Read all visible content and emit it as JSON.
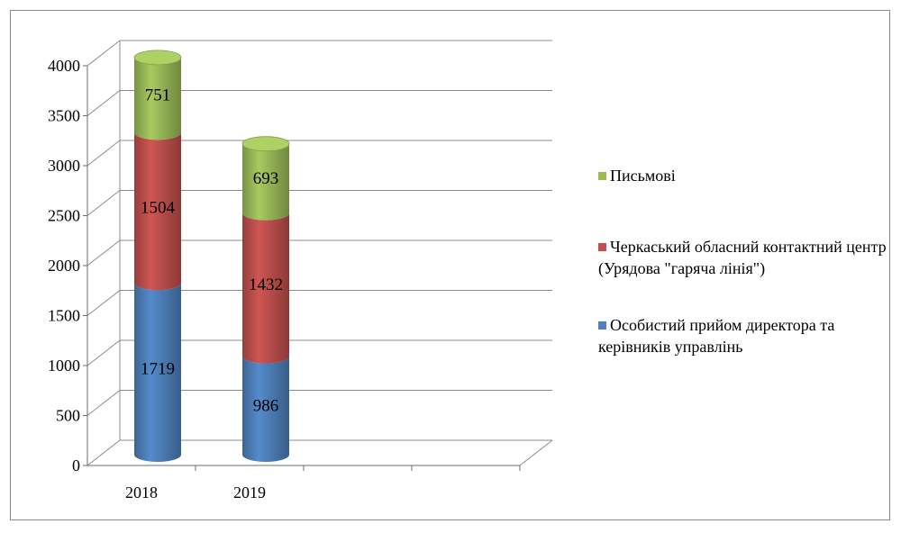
{
  "chart_data": {
    "type": "bar",
    "stacked": true,
    "style": "3d-cylinder",
    "categories": [
      "2018",
      "2019"
    ],
    "series": [
      {
        "name": "Особистий прийом директора та керівників  управлінь",
        "values": [
          1719,
          986
        ],
        "color": "#4f81bd"
      },
      {
        "name": "Черкаський обласний контактний центр (Урядова \"гаряча лінія\")",
        "values": [
          1504,
          1432
        ],
        "color": "#c0504d"
      },
      {
        "name": "Письмові",
        "values": [
          751,
          693
        ],
        "color": "#9bbb59"
      }
    ],
    "ylim": [
      0,
      4000
    ],
    "yticks": [
      "0",
      "500",
      "1000",
      "1500",
      "2000",
      "2500",
      "3000",
      "3500",
      "4000"
    ],
    "grid": true,
    "legend_position": "right"
  },
  "legend": {
    "items": [
      {
        "label": "Письмові",
        "color": "#9bbb59"
      },
      {
        "label": "Черкаський обласний контактний центр (Урядова \"гаряча лінія\")",
        "color": "#c0504d"
      },
      {
        "label": "Особистий прийом директора та керівників  управлінь",
        "color": "#4f81bd"
      }
    ]
  }
}
